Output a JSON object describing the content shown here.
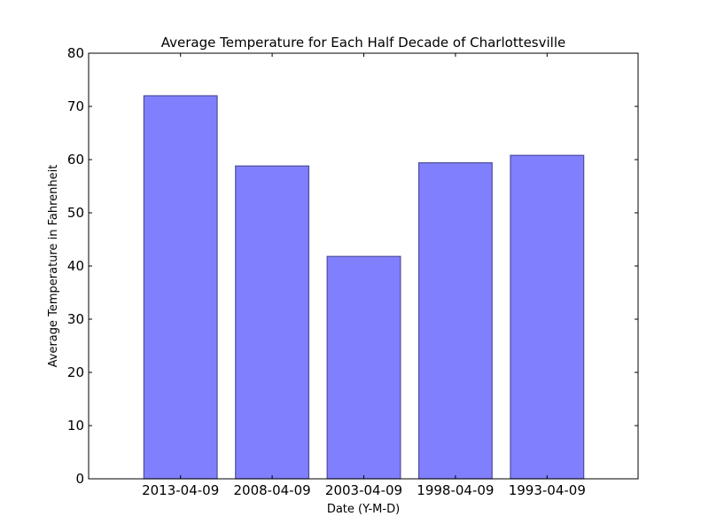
{
  "chart_data": {
    "type": "bar",
    "title": "Average Temperature for Each Half Decade of Charlottesville",
    "xlabel": "Date (Y-M-D)",
    "ylabel": "Average Temperature in Fahrenheit",
    "categories": [
      "2013-04-09",
      "2008-04-09",
      "2003-04-09",
      "1998-04-09",
      "1993-04-09"
    ],
    "values": [
      72,
      58.8,
      41.8,
      59.4,
      60.8
    ],
    "ylim": [
      0,
      80
    ],
    "yticks": [
      0,
      10,
      20,
      30,
      40,
      50,
      60,
      70,
      80
    ],
    "ytick_labels": [
      "0",
      "10",
      "20",
      "30",
      "40",
      "50",
      "60",
      "70",
      "80"
    ],
    "grid": false,
    "bar_color": "#8080ff",
    "bar_edge_color": "#4d4d99"
  }
}
